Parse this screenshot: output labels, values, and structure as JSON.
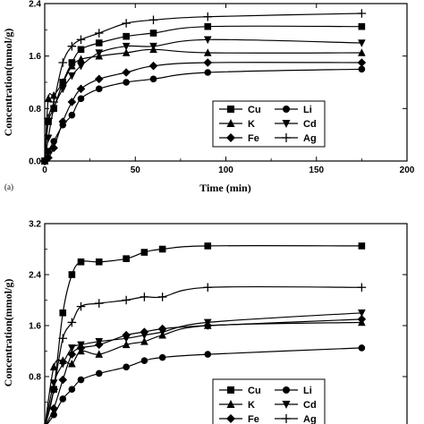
{
  "chart_data": [
    {
      "type": "line",
      "panel_label": "(a)",
      "xlabel": "Time (min)",
      "ylabel": "Concentration(mmol/g)",
      "xlim": [
        0,
        200
      ],
      "ylim": [
        0,
        2.4
      ],
      "xticks": [
        "0",
        "50",
        "100",
        "150",
        "200"
      ],
      "yticks": [
        "0.0",
        "0.8",
        "1.6",
        "2.4"
      ],
      "legend_position": "lower-right",
      "series": [
        {
          "name": "Cu",
          "marker": "square",
          "x": [
            0,
            2,
            5,
            10,
            15,
            20,
            30,
            45,
            60,
            90,
            175
          ],
          "y": [
            0.0,
            0.6,
            0.8,
            1.2,
            1.5,
            1.7,
            1.8,
            1.9,
            1.95,
            2.05,
            2.05
          ]
        },
        {
          "name": "Li",
          "marker": "circle",
          "x": [
            0,
            2,
            5,
            10,
            15,
            20,
            30,
            45,
            60,
            90,
            175
          ],
          "y": [
            0.0,
            0.15,
            0.3,
            0.55,
            0.7,
            0.95,
            1.1,
            1.2,
            1.25,
            1.35,
            1.4
          ]
        },
        {
          "name": "K",
          "marker": "triangle-up",
          "x": [
            0,
            2,
            5,
            10,
            15,
            20,
            30,
            45,
            60,
            90,
            175
          ],
          "y": [
            0.0,
            0.95,
            1.0,
            1.2,
            1.45,
            1.55,
            1.6,
            1.65,
            1.7,
            1.65,
            1.65
          ]
        },
        {
          "name": "Cd",
          "marker": "triangle-down",
          "x": [
            0,
            2,
            5,
            10,
            15,
            20,
            30,
            45,
            60,
            90,
            175
          ],
          "y": [
            0.0,
            0.35,
            0.8,
            1.1,
            1.3,
            1.45,
            1.65,
            1.75,
            1.75,
            1.85,
            1.8
          ]
        },
        {
          "name": "Fe",
          "marker": "diamond",
          "x": [
            0,
            2,
            5,
            10,
            15,
            20,
            30,
            45,
            60,
            90,
            175
          ],
          "y": [
            0.0,
            0.05,
            0.2,
            0.6,
            0.9,
            1.1,
            1.25,
            1.35,
            1.45,
            1.5,
            1.5
          ]
        },
        {
          "name": "Ag",
          "marker": "plus",
          "x": [
            0,
            2,
            5,
            10,
            15,
            20,
            30,
            45,
            60,
            90,
            175
          ],
          "y": [
            0.0,
            0.65,
            0.9,
            1.5,
            1.75,
            1.85,
            1.95,
            2.1,
            2.15,
            2.2,
            2.25
          ]
        }
      ]
    },
    {
      "type": "line",
      "xlabel": "",
      "ylabel": "Concentration(mmol/g)",
      "xlim": [
        0,
        200
      ],
      "ylim": [
        0,
        3.2
      ],
      "yticks": [
        "0.8",
        "1.6",
        "2.4",
        "3.2"
      ],
      "legend_position": "lower-right",
      "series": [
        {
          "name": "Cu",
          "marker": "square",
          "x": [
            0,
            5,
            10,
            15,
            20,
            30,
            45,
            55,
            65,
            90,
            175
          ],
          "y": [
            0.0,
            0.6,
            1.8,
            2.4,
            2.6,
            2.6,
            2.65,
            2.75,
            2.8,
            2.85,
            2.85
          ]
        },
        {
          "name": "Li",
          "marker": "circle",
          "x": [
            0,
            5,
            10,
            15,
            20,
            30,
            45,
            55,
            65,
            90,
            175
          ],
          "y": [
            0.0,
            0.2,
            0.45,
            0.6,
            0.75,
            0.85,
            0.95,
            1.05,
            1.1,
            1.15,
            1.25
          ]
        },
        {
          "name": "K",
          "marker": "triangle-up",
          "x": [
            0,
            5,
            10,
            15,
            20,
            30,
            45,
            55,
            65,
            90,
            175
          ],
          "y": [
            0.0,
            0.95,
            1.05,
            1.0,
            1.2,
            1.15,
            1.3,
            1.35,
            1.45,
            1.6,
            1.65
          ]
        },
        {
          "name": "Cd",
          "marker": "triangle-down",
          "x": [
            0,
            5,
            10,
            15,
            20,
            30,
            45,
            55,
            65,
            90,
            175
          ],
          "y": [
            0.0,
            0.7,
            1.0,
            1.25,
            1.3,
            1.35,
            1.4,
            1.45,
            1.5,
            1.65,
            1.8
          ]
        },
        {
          "name": "Fe",
          "marker": "diamond",
          "x": [
            0,
            5,
            10,
            15,
            20,
            30,
            45,
            55,
            65,
            90,
            175
          ],
          "y": [
            0.0,
            0.3,
            0.75,
            1.15,
            1.25,
            1.3,
            1.45,
            1.5,
            1.55,
            1.6,
            1.7
          ]
        },
        {
          "name": "Ag",
          "marker": "plus",
          "x": [
            0,
            5,
            10,
            15,
            20,
            30,
            45,
            55,
            65,
            90,
            175
          ],
          "y": [
            0.0,
            0.6,
            1.4,
            1.65,
            1.9,
            1.95,
            2.0,
            2.05,
            2.05,
            2.2,
            2.2
          ]
        }
      ]
    }
  ]
}
